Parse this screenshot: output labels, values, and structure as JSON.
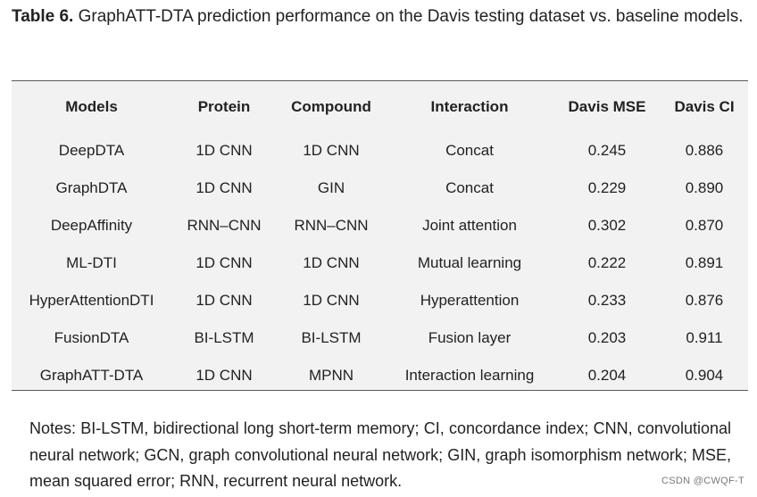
{
  "caption": {
    "label": "Table 6.",
    "text": " GraphATT-DTA prediction performance on the Davis testing dataset vs. baseline models."
  },
  "table": {
    "headers": [
      "Models",
      "Protein",
      "Compound",
      "Interaction",
      "Davis MSE",
      "Davis CI"
    ],
    "rows": [
      [
        "DeepDTA",
        "1D CNN",
        "1D CNN",
        "Concat",
        "0.245",
        "0.886"
      ],
      [
        "GraphDTA",
        "1D CNN",
        "GIN",
        "Concat",
        "0.229",
        "0.890"
      ],
      [
        "DeepAffinity",
        "RNN–CNN",
        "RNN–CNN",
        "Joint attention",
        "0.302",
        "0.870"
      ],
      [
        "ML-DTI",
        "1D CNN",
        "1D CNN",
        "Mutual learning",
        "0.222",
        "0.891"
      ],
      [
        "HyperAttentionDTI",
        "1D CNN",
        "1D CNN",
        "Hyperattention",
        "0.233",
        "0.876"
      ],
      [
        "FusionDTA",
        "BI-LSTM",
        "BI-LSTM",
        "Fusion layer",
        "0.203",
        "0.911"
      ],
      [
        "GraphATT-DTA",
        "1D CNN",
        "MPNN",
        "Interaction learning",
        "0.204",
        "0.904"
      ]
    ]
  },
  "notes": "Notes: BI-LSTM, bidirectional long short-term memory; CI, concordance index; CNN, convolutional neural network; GCN, graph convolutional neural network; GIN, graph isomorphism network; MSE, mean squared error; RNN, recurrent neural network.",
  "watermark": "CSDN @CWQF-T"
}
